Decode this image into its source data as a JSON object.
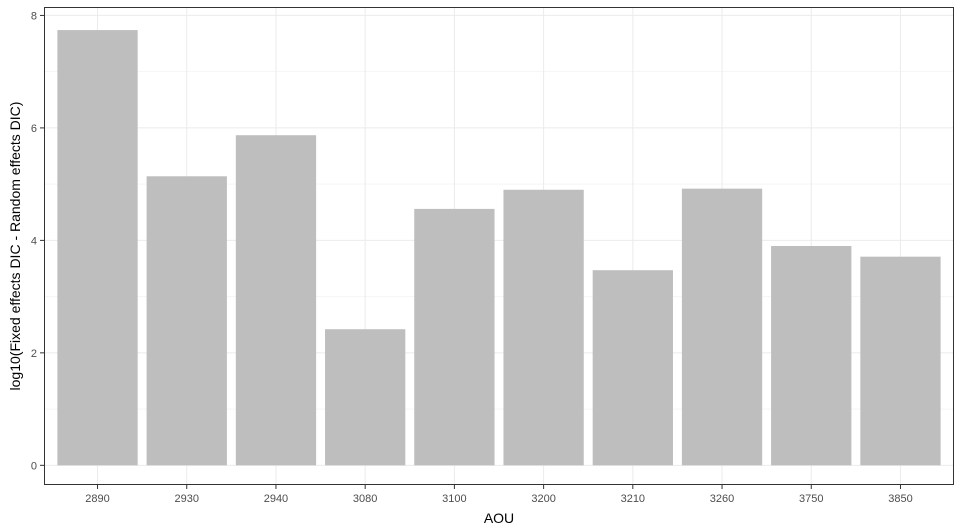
{
  "chart_data": {
    "type": "bar",
    "title": "",
    "xlabel": "AOU",
    "ylabel": "log10(Fixed effects DIC - Random effects DIC)",
    "categories": [
      "2890",
      "2930",
      "2940",
      "3080",
      "3100",
      "3200",
      "3210",
      "3260",
      "3750",
      "3850"
    ],
    "values": [
      7.74,
      5.14,
      5.87,
      2.42,
      4.56,
      4.9,
      3.47,
      4.92,
      3.9,
      3.71
    ],
    "ylim": [
      -0.35,
      8.15
    ],
    "yticks": [
      0,
      2,
      4,
      6,
      8
    ],
    "grid": true,
    "legend": "none",
    "bar_color": "#bebebe",
    "grid_major_color": "#ebebeb",
    "grid_minor_color": "#f5f5f5",
    "panel_border_color": "#333333"
  }
}
